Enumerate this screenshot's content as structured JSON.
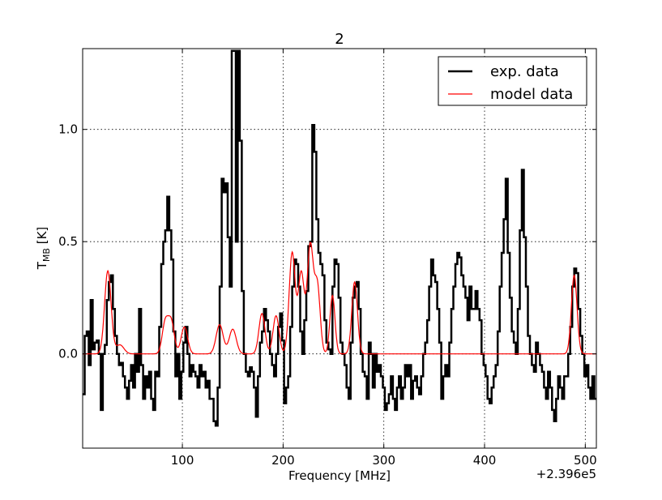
{
  "chart_data": {
    "type": "line",
    "title": "2",
    "xlabel": "Frequency [MHz]",
    "ylabel": {
      "base": "T",
      "subscript": "MB",
      "unit": " [K]"
    },
    "x_offset_label": "+2.396e5",
    "xlim": [
      1,
      511
    ],
    "ylim": [
      -0.42,
      1.36
    ],
    "xticks": [
      100,
      200,
      300,
      400,
      500
    ],
    "xtick_labels": [
      "100",
      "200",
      "300",
      "400",
      "500"
    ],
    "yticks": [
      0.0,
      0.5,
      1.0
    ],
    "ytick_labels": [
      "0.0",
      "0.5",
      "1.0"
    ],
    "grid": true,
    "legend": {
      "location": "upper right",
      "entries": [
        "exp. data",
        "model data"
      ]
    },
    "series": [
      {
        "name": "exp. data",
        "color": "#000000",
        "step": true,
        "points": [
          [
            1,
            -0.18
          ],
          [
            3,
            0.08
          ],
          [
            5,
            0.1
          ],
          [
            7,
            -0.05
          ],
          [
            9,
            0.24
          ],
          [
            11,
            0.02
          ],
          [
            13,
            0.05
          ],
          [
            15,
            0.06
          ],
          [
            17,
            0.0
          ],
          [
            19,
            -0.25
          ],
          [
            21,
            0.0
          ],
          [
            23,
            0.04
          ],
          [
            25,
            0.24
          ],
          [
            27,
            0.32
          ],
          [
            29,
            0.35
          ],
          [
            31,
            0.2
          ],
          [
            33,
            0.08
          ],
          [
            35,
            0.0
          ],
          [
            37,
            -0.05
          ],
          [
            39,
            -0.04
          ],
          [
            41,
            -0.1
          ],
          [
            43,
            -0.15
          ],
          [
            45,
            -0.2
          ],
          [
            47,
            -0.12
          ],
          [
            49,
            -0.05
          ],
          [
            51,
            -0.15
          ],
          [
            53,
            0.0
          ],
          [
            55,
            -0.08
          ],
          [
            57,
            0.2
          ],
          [
            59,
            -0.05
          ],
          [
            61,
            -0.2
          ],
          [
            63,
            -0.1
          ],
          [
            65,
            -0.15
          ],
          [
            67,
            -0.08
          ],
          [
            69,
            -0.2
          ],
          [
            71,
            -0.25
          ],
          [
            73,
            -0.08
          ],
          [
            75,
            -0.1
          ],
          [
            77,
            0.12
          ],
          [
            79,
            0.4
          ],
          [
            81,
            0.5
          ],
          [
            83,
            0.55
          ],
          [
            85,
            0.7
          ],
          [
            87,
            0.55
          ],
          [
            89,
            0.42
          ],
          [
            91,
            0.1
          ],
          [
            93,
            -0.1
          ],
          [
            95,
            0.0
          ],
          [
            97,
            -0.2
          ],
          [
            99,
            -0.08
          ],
          [
            101,
            0.05
          ],
          [
            103,
            0.12
          ],
          [
            105,
            0.0
          ],
          [
            107,
            -0.1
          ],
          [
            109,
            -0.05
          ],
          [
            111,
            -0.08
          ],
          [
            113,
            -0.1
          ],
          [
            115,
            -0.15
          ],
          [
            117,
            -0.05
          ],
          [
            119,
            -0.1
          ],
          [
            121,
            -0.08
          ],
          [
            123,
            -0.15
          ],
          [
            125,
            -0.12
          ],
          [
            127,
            -0.2
          ],
          [
            129,
            -0.2
          ],
          [
            131,
            -0.3
          ],
          [
            133,
            -0.32
          ],
          [
            135,
            -0.15
          ],
          [
            137,
            0.3
          ],
          [
            139,
            0.78
          ],
          [
            141,
            0.72
          ],
          [
            143,
            0.76
          ],
          [
            145,
            0.52
          ],
          [
            147,
            0.3
          ],
          [
            149,
            1.35
          ],
          [
            151,
            1.35
          ],
          [
            153,
            0.5
          ],
          [
            155,
            1.35
          ],
          [
            157,
            0.95
          ],
          [
            159,
            0.28
          ],
          [
            161,
            0.0
          ],
          [
            163,
            -0.08
          ],
          [
            165,
            -0.1
          ],
          [
            167,
            -0.06
          ],
          [
            169,
            -0.08
          ],
          [
            171,
            -0.15
          ],
          [
            173,
            -0.28
          ],
          [
            175,
            -0.1
          ],
          [
            177,
            0.05
          ],
          [
            179,
            0.1
          ],
          [
            181,
            0.2
          ],
          [
            183,
            0.15
          ],
          [
            185,
            0.1
          ],
          [
            187,
            0.0
          ],
          [
            189,
            -0.05
          ],
          [
            191,
            -0.1
          ],
          [
            193,
            0.0
          ],
          [
            195,
            0.12
          ],
          [
            197,
            0.18
          ],
          [
            199,
            0.06
          ],
          [
            201,
            -0.22
          ],
          [
            203,
            -0.15
          ],
          [
            205,
            -0.1
          ],
          [
            207,
            0.12
          ],
          [
            209,
            0.3
          ],
          [
            211,
            0.42
          ],
          [
            213,
            0.4
          ],
          [
            215,
            0.3
          ],
          [
            217,
            0.1
          ],
          [
            219,
            0.0
          ],
          [
            221,
            0.15
          ],
          [
            223,
            0.28
          ],
          [
            225,
            0.48
          ],
          [
            227,
            0.5
          ],
          [
            229,
            1.02
          ],
          [
            231,
            0.9
          ],
          [
            233,
            0.6
          ],
          [
            235,
            0.45
          ],
          [
            237,
            0.4
          ],
          [
            239,
            0.35
          ],
          [
            241,
            0.15
          ],
          [
            243,
            0.05
          ],
          [
            245,
            0.02
          ],
          [
            247,
            0.0
          ],
          [
            249,
            0.3
          ],
          [
            251,
            0.42
          ],
          [
            253,
            0.4
          ],
          [
            255,
            0.25
          ],
          [
            257,
            0.05
          ],
          [
            259,
            0.0
          ],
          [
            261,
            -0.05
          ],
          [
            263,
            -0.15
          ],
          [
            265,
            -0.2
          ],
          [
            267,
            0.05
          ],
          [
            269,
            0.25
          ],
          [
            271,
            0.3
          ],
          [
            273,
            0.32
          ],
          [
            275,
            0.2
          ],
          [
            277,
            0.0
          ],
          [
            279,
            -0.08
          ],
          [
            281,
            -0.1
          ],
          [
            283,
            -0.2
          ],
          [
            285,
            0.05
          ],
          [
            287,
            0.0
          ],
          [
            289,
            -0.15
          ],
          [
            291,
            0.0
          ],
          [
            293,
            -0.08
          ],
          [
            295,
            -0.05
          ],
          [
            297,
            -0.1
          ],
          [
            299,
            -0.15
          ],
          [
            301,
            -0.25
          ],
          [
            303,
            -0.22
          ],
          [
            305,
            -0.18
          ],
          [
            307,
            -0.1
          ],
          [
            309,
            -0.2
          ],
          [
            311,
            -0.25
          ],
          [
            313,
            -0.15
          ],
          [
            315,
            -0.1
          ],
          [
            317,
            -0.2
          ],
          [
            319,
            -0.15
          ],
          [
            321,
            -0.05
          ],
          [
            323,
            -0.1
          ],
          [
            325,
            -0.05
          ],
          [
            327,
            -0.2
          ],
          [
            329,
            -0.12
          ],
          [
            331,
            -0.1
          ],
          [
            333,
            -0.15
          ],
          [
            335,
            -0.18
          ],
          [
            337,
            -0.1
          ],
          [
            339,
            0.0
          ],
          [
            341,
            0.05
          ],
          [
            343,
            0.15
          ],
          [
            345,
            0.3
          ],
          [
            347,
            0.42
          ],
          [
            349,
            0.35
          ],
          [
            351,
            0.32
          ],
          [
            353,
            0.2
          ],
          [
            355,
            0.05
          ],
          [
            357,
            -0.2
          ],
          [
            359,
            -0.1
          ],
          [
            361,
            -0.05
          ],
          [
            363,
            -0.1
          ],
          [
            365,
            0.05
          ],
          [
            367,
            0.2
          ],
          [
            369,
            0.3
          ],
          [
            371,
            0.4
          ],
          [
            373,
            0.45
          ],
          [
            375,
            0.43
          ],
          [
            377,
            0.35
          ],
          [
            379,
            0.3
          ],
          [
            381,
            0.25
          ],
          [
            383,
            0.15
          ],
          [
            385,
            0.3
          ],
          [
            387,
            0.2
          ],
          [
            389,
            0.2
          ],
          [
            391,
            0.28
          ],
          [
            393,
            0.2
          ],
          [
            395,
            0.15
          ],
          [
            397,
            0.0
          ],
          [
            399,
            -0.05
          ],
          [
            401,
            -0.1
          ],
          [
            403,
            -0.2
          ],
          [
            405,
            -0.22
          ],
          [
            407,
            -0.15
          ],
          [
            409,
            -0.1
          ],
          [
            411,
            -0.05
          ],
          [
            413,
            0.1
          ],
          [
            415,
            0.3
          ],
          [
            417,
            0.45
          ],
          [
            419,
            0.6
          ],
          [
            421,
            0.78
          ],
          [
            423,
            0.45
          ],
          [
            425,
            0.25
          ],
          [
            427,
            0.1
          ],
          [
            429,
            0.05
          ],
          [
            431,
            0.0
          ],
          [
            433,
            0.2
          ],
          [
            435,
            0.55
          ],
          [
            437,
            0.82
          ],
          [
            439,
            0.52
          ],
          [
            441,
            0.3
          ],
          [
            443,
            0.08
          ],
          [
            445,
            0.0
          ],
          [
            447,
            -0.05
          ],
          [
            449,
            -0.08
          ],
          [
            451,
            0.05
          ],
          [
            453,
            0.0
          ],
          [
            455,
            -0.05
          ],
          [
            457,
            -0.08
          ],
          [
            459,
            -0.15
          ],
          [
            461,
            -0.2
          ],
          [
            463,
            -0.08
          ],
          [
            465,
            -0.15
          ],
          [
            467,
            -0.25
          ],
          [
            469,
            -0.3
          ],
          [
            471,
            -0.2
          ],
          [
            473,
            -0.1
          ],
          [
            475,
            -0.15
          ],
          [
            477,
            -0.2
          ],
          [
            479,
            -0.1
          ],
          [
            481,
            -0.1
          ],
          [
            483,
            0.0
          ],
          [
            485,
            0.12
          ],
          [
            487,
            0.3
          ],
          [
            489,
            0.38
          ],
          [
            491,
            0.36
          ],
          [
            493,
            0.2
          ],
          [
            495,
            0.08
          ],
          [
            497,
            0.0
          ],
          [
            499,
            -0.1
          ],
          [
            501,
            -0.05
          ],
          [
            503,
            -0.15
          ],
          [
            505,
            -0.2
          ],
          [
            507,
            -0.1
          ],
          [
            509,
            -0.2
          ],
          [
            511,
            -0.2
          ]
        ]
      },
      {
        "name": "model data",
        "color": "#ff0000",
        "step": false,
        "baseline": 0.0,
        "peaks": [
          [
            26,
            0.37,
            3.2
          ],
          [
            38,
            0.04,
            4.0
          ],
          [
            83,
            0.14,
            3.0
          ],
          [
            89,
            0.14,
            3.0
          ],
          [
            102,
            0.12,
            3.2
          ],
          [
            137,
            0.13,
            3.5
          ],
          [
            150,
            0.11,
            3.5
          ],
          [
            179,
            0.18,
            3.0
          ],
          [
            193,
            0.17,
            3.0
          ],
          [
            209,
            0.45,
            3.0
          ],
          [
            218,
            0.36,
            3.0
          ],
          [
            227,
            0.48,
            3.0
          ],
          [
            234,
            0.3,
            2.8
          ],
          [
            249,
            0.26,
            2.5
          ],
          [
            271,
            0.32,
            2.8
          ],
          [
            489,
            0.35,
            2.8
          ]
        ]
      }
    ]
  }
}
